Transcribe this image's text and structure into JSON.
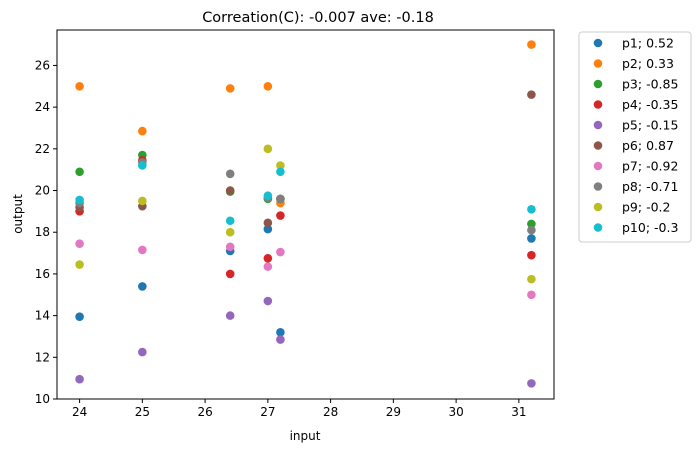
{
  "chart_data": {
    "type": "scatter",
    "title": "Correation(C): -0.007 ave: -0.18",
    "xlabel": "input",
    "ylabel": "output",
    "xlim": [
      23.64,
      31.56
    ],
    "ylim": [
      10,
      27.7
    ],
    "xticks": [
      24,
      25,
      26,
      27,
      28,
      29,
      30,
      31
    ],
    "yticks": [
      10,
      12,
      14,
      16,
      18,
      20,
      22,
      24,
      26
    ],
    "legend_position": "outside-upper-right",
    "grid": false,
    "series": [
      {
        "name": "p1; 0.52",
        "color": "#1f77b4",
        "x": [
          24,
          25,
          26.4,
          27,
          27.2,
          31.2
        ],
        "y": [
          13.95,
          15.4,
          17.1,
          18.15,
          13.2,
          17.7
        ]
      },
      {
        "name": "p2; 0.33",
        "color": "#ff7f0e",
        "x": [
          24,
          25,
          26.4,
          27,
          27.2,
          31.2
        ],
        "y": [
          25.0,
          22.85,
          24.9,
          25.0,
          19.4,
          27.0
        ]
      },
      {
        "name": "p3; -0.85",
        "color": "#2ca02c",
        "x": [
          24,
          25,
          26.4,
          27,
          27.2,
          31.2
        ],
        "y": [
          20.9,
          21.7,
          19.95,
          19.6,
          19.6,
          18.4
        ]
      },
      {
        "name": "p4; -0.35",
        "color": "#d62728",
        "x": [
          24,
          25,
          26.4,
          27,
          27.2,
          31.2
        ],
        "y": [
          19.0,
          21.45,
          16.0,
          16.75,
          18.8,
          16.9
        ]
      },
      {
        "name": "p5; -0.15",
        "color": "#9467bd",
        "x": [
          24,
          25,
          26.4,
          27,
          27.2,
          31.2
        ],
        "y": [
          10.95,
          12.25,
          14.0,
          14.7,
          12.85,
          10.75
        ]
      },
      {
        "name": "p6; 0.87",
        "color": "#8c564b",
        "x": [
          24,
          25,
          26.4,
          27,
          27.2,
          31.2
        ],
        "y": [
          19.2,
          19.25,
          20.0,
          18.45,
          19.6,
          24.6
        ]
      },
      {
        "name": "p7; -0.92",
        "color": "#e377c2",
        "x": [
          24,
          25,
          26.4,
          27,
          27.2,
          31.2
        ],
        "y": [
          17.45,
          17.15,
          17.3,
          16.35,
          17.05,
          15.0
        ]
      },
      {
        "name": "p8; -0.71",
        "color": "#7f7f7f",
        "x": [
          24,
          25,
          26.4,
          27,
          27.2,
          31.2
        ],
        "y": [
          19.4,
          21.35,
          20.8,
          19.65,
          19.6,
          18.1
        ]
      },
      {
        "name": "p9; -0.2",
        "color": "#bcbd22",
        "x": [
          24,
          25,
          26.4,
          27,
          27.2,
          31.2
        ],
        "y": [
          16.45,
          19.5,
          18.0,
          22.0,
          21.2,
          15.75
        ]
      },
      {
        "name": "p10; -0.3",
        "color": "#17becf",
        "x": [
          24,
          25,
          26.4,
          27,
          27.2,
          31.2
        ],
        "y": [
          19.55,
          21.2,
          18.55,
          19.75,
          20.9,
          19.1
        ]
      }
    ]
  }
}
